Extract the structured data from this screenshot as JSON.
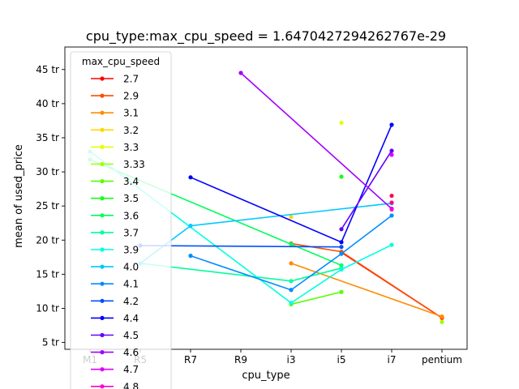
{
  "chart_data": {
    "type": "line",
    "title": "cpu_type:max_cpu_speed = 1.6470427294262767e-29",
    "xlabel": "cpu_type",
    "ylabel": "mean of used_price",
    "categories": [
      "M1",
      "R5",
      "R7",
      "R9",
      "i3",
      "i5",
      "i7",
      "pentium"
    ],
    "yticks": [
      {
        "value": 5,
        "label": "5 tr"
      },
      {
        "value": 10,
        "label": "10 tr"
      },
      {
        "value": 15,
        "label": "15 tr"
      },
      {
        "value": 20,
        "label": "20 tr"
      },
      {
        "value": 25,
        "label": "25 tr"
      },
      {
        "value": 30,
        "label": "30 tr"
      },
      {
        "value": 35,
        "label": "35 tr"
      },
      {
        "value": 40,
        "label": "40 tr"
      },
      {
        "value": 45,
        "label": "45 tr"
      }
    ],
    "ylim": [
      4.0,
      48.3
    ],
    "xlim": [
      -0.5,
      7.5
    ],
    "grid": false,
    "legend": {
      "title": "max_cpu_speed",
      "placement": "upper-left"
    },
    "series": [
      {
        "name": "2.7",
        "color": "#ff0000",
        "points": [
          [
            5,
            18.2
          ],
          [
            7,
            8.6
          ]
        ]
      },
      {
        "name": "2.9",
        "color": "#ff4d00",
        "points": [
          [
            4,
            19.5
          ],
          [
            5,
            18.3
          ],
          [
            7,
            8.6
          ]
        ]
      },
      {
        "name": "3.1",
        "color": "#ff8c00",
        "points": [
          [
            4,
            16.6
          ],
          [
            7,
            8.8
          ]
        ]
      },
      {
        "name": "3.2",
        "color": "#ffd700",
        "points": [
          [
            4,
            23.4
          ]
        ]
      },
      {
        "name": "3.3",
        "color": "#e5ff00",
        "points": [
          [
            5,
            37.2
          ]
        ]
      },
      {
        "name": "3.33",
        "color": "#a0ff00",
        "points": [
          [
            7,
            8.0
          ]
        ]
      },
      {
        "name": "3.4",
        "color": "#55ff00",
        "points": [
          [
            4,
            10.6
          ],
          [
            5,
            12.4
          ]
        ]
      },
      {
        "name": "3.5",
        "color": "#14ff14",
        "points": [
          [
            5,
            29.3
          ]
        ]
      },
      {
        "name": "3.6",
        "color": "#00ff5a",
        "points": [
          [
            0,
            31.8
          ],
          [
            4,
            19.4
          ],
          [
            5,
            16.3
          ]
        ]
      },
      {
        "name": "3.7",
        "color": "#00ff9c",
        "points": [
          [
            1,
            16.6
          ],
          [
            4,
            14.0
          ],
          [
            5,
            15.9
          ]
        ]
      },
      {
        "name": "3.9",
        "color": "#00ffe0",
        "points": [
          [
            0,
            33.0
          ],
          [
            4,
            10.8
          ],
          [
            5,
            15.7
          ],
          [
            6,
            19.3
          ]
        ]
      },
      {
        "name": "4.0",
        "color": "#00c8ff",
        "points": [
          [
            1,
            16.6
          ],
          [
            2,
            22.1
          ],
          [
            6,
            25.4
          ]
        ]
      },
      {
        "name": "4.1",
        "color": "#008cff",
        "points": [
          [
            2,
            17.7
          ],
          [
            4,
            12.7
          ],
          [
            5,
            18.0
          ],
          [
            6,
            23.6
          ]
        ]
      },
      {
        "name": "4.2",
        "color": "#0050ff",
        "points": [
          [
            1,
            19.2
          ],
          [
            5,
            19.0
          ]
        ]
      },
      {
        "name": "4.4",
        "color": "#0000ff",
        "points": [
          [
            2,
            29.2
          ],
          [
            5,
            19.7
          ],
          [
            6,
            36.9
          ]
        ]
      },
      {
        "name": "4.5",
        "color": "#6400ff",
        "points": [
          [
            5,
            21.6
          ],
          [
            6,
            33.1
          ]
        ]
      },
      {
        "name": "4.6",
        "color": "#a000ff",
        "points": [
          [
            3,
            44.5
          ],
          [
            6,
            24.6
          ]
        ]
      },
      {
        "name": "4.7",
        "color": "#e000ff",
        "points": [
          [
            6,
            32.5
          ]
        ]
      },
      {
        "name": "4.8",
        "color": "#ff00d2",
        "points": [
          [
            6,
            24.5
          ]
        ]
      },
      {
        "name": "",
        "color": "#ff0096",
        "points": [
          [
            6,
            25.5
          ]
        ]
      },
      {
        "name": "",
        "color": "#ff0050",
        "points": [
          [
            6,
            26.5
          ]
        ]
      }
    ]
  }
}
